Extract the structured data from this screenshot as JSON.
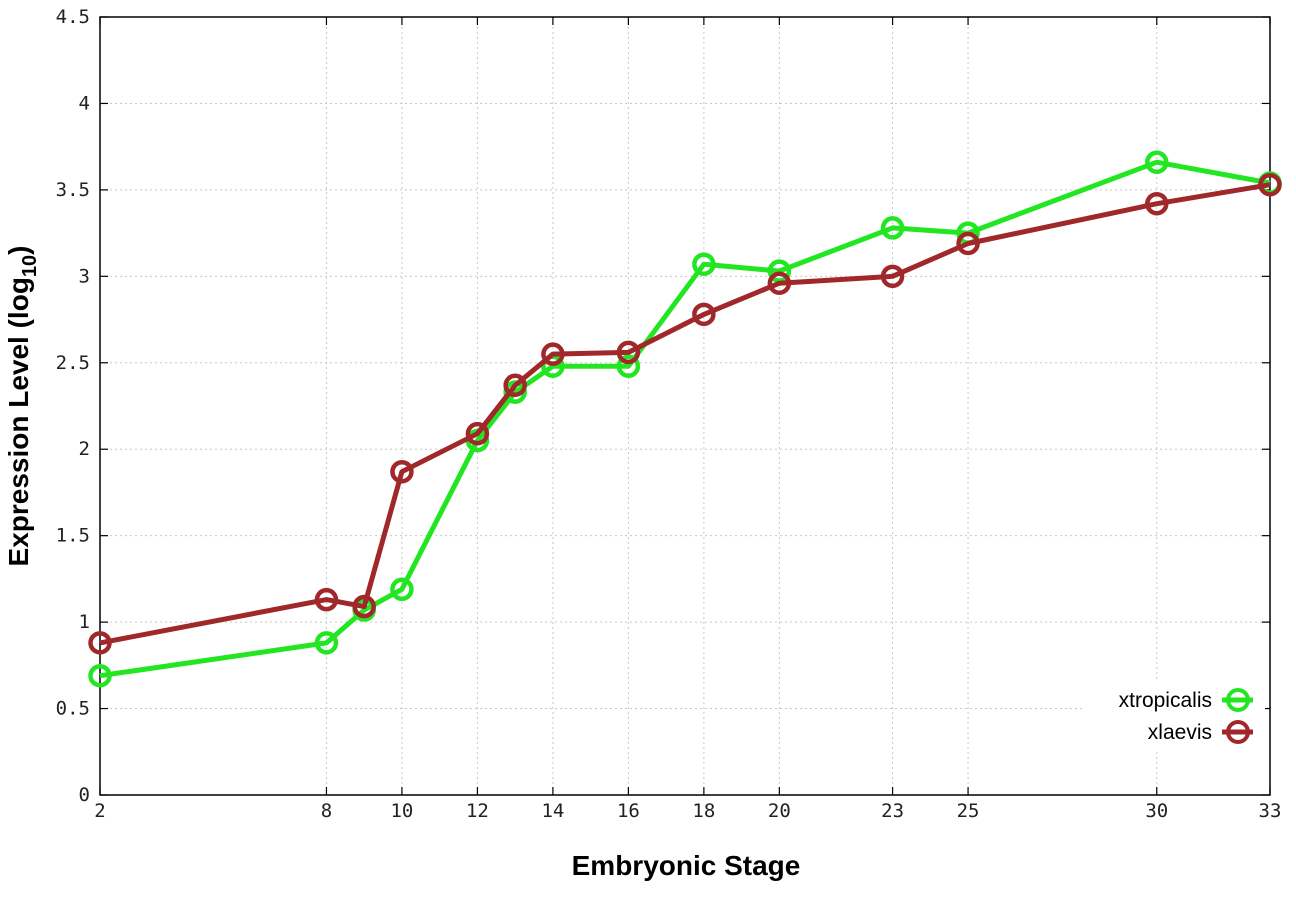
{
  "chart_data": {
    "type": "line",
    "xlabel": "Embryonic Stage",
    "ylabel_main": "Expression Level (log",
    "ylabel_sub": "10",
    "ylabel_close": ")",
    "xlim": [
      2,
      33
    ],
    "ylim": [
      0,
      4.5
    ],
    "x": [
      2,
      8,
      9,
      10,
      12,
      13,
      14,
      16,
      18,
      20,
      23,
      25,
      30,
      33
    ],
    "x_ticks": [
      2,
      8,
      10,
      12,
      14,
      16,
      18,
      20,
      23,
      25,
      30,
      33
    ],
    "x_tick_labels": [
      "2",
      "8",
      "10",
      "12",
      "14",
      "16",
      "18",
      "20",
      "23",
      "25",
      "30",
      "33"
    ],
    "y_ticks": [
      0,
      0.5,
      1,
      1.5,
      2,
      2.5,
      3,
      3.5,
      4,
      4.5
    ],
    "y_tick_labels": [
      "0",
      "0.5",
      "1",
      "1.5",
      "2",
      "2.5",
      "3",
      "3.5",
      "4",
      "4.5"
    ],
    "grid": true,
    "legend_position": "bottom-right",
    "series": [
      {
        "name": "xtropicalis",
        "color": "#22e622",
        "values": [
          0.69,
          0.88,
          1.07,
          1.19,
          2.05,
          2.33,
          2.48,
          2.48,
          3.07,
          3.03,
          3.28,
          3.25,
          3.66,
          3.54
        ]
      },
      {
        "name": "xlaevis",
        "color": "#a0282a",
        "values": [
          0.88,
          1.13,
          1.09,
          1.87,
          2.09,
          2.37,
          2.55,
          2.56,
          2.78,
          2.96,
          3.0,
          3.19,
          3.42,
          3.53
        ]
      }
    ]
  }
}
